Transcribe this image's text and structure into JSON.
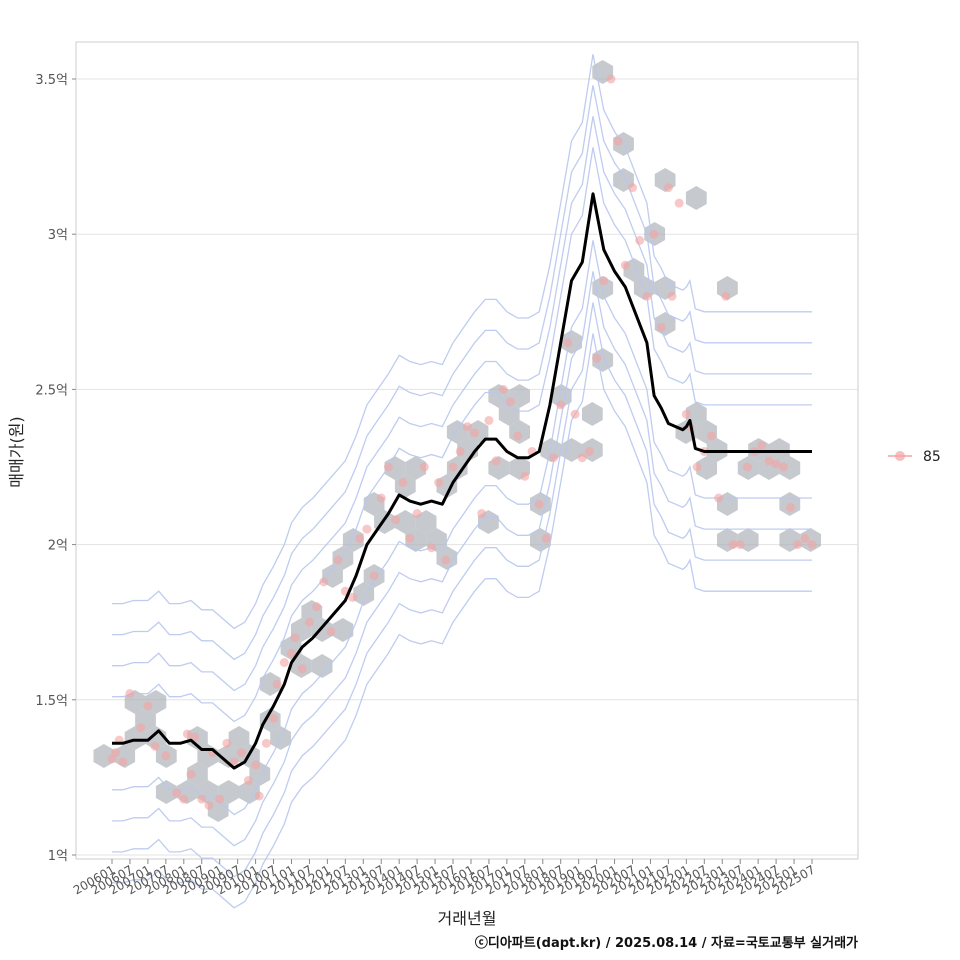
{
  "chart_data": {
    "type": "scatter",
    "xlabel": "거래년월",
    "ylabel": "매매가(원)",
    "caption": "ⓒ디아파트(dapt.kr) / 2025.08.14 / 자료=국토교통부 실거래가",
    "legend": {
      "label": "85",
      "position": "right",
      "color": "#f4a3a3"
    },
    "ylim": [
      1.0,
      3.6
    ],
    "y_ticks": [
      {
        "value": 1.0,
        "label": "1억"
      },
      {
        "value": 1.5,
        "label": "1.5억"
      },
      {
        "value": 2.0,
        "label": "2억"
      },
      {
        "value": 2.5,
        "label": "2.5억"
      },
      {
        "value": 3.0,
        "label": "3억"
      },
      {
        "value": 3.5,
        "label": "3.5억"
      }
    ],
    "x_ticks": [
      "200601",
      "200607",
      "200701",
      "200707",
      "200801",
      "200807",
      "200901",
      "200907",
      "201001",
      "201007",
      "201101",
      "201107",
      "201201",
      "201207",
      "201301",
      "201307",
      "201401",
      "201407",
      "201501",
      "201507",
      "201601",
      "201607",
      "201701",
      "201707",
      "201801",
      "201807",
      "201901",
      "201907",
      "202001",
      "202007",
      "202101",
      "202107",
      "202201",
      "202207",
      "202301",
      "202307",
      "202401",
      "202407",
      "202501",
      "202507"
    ],
    "grid": true,
    "series": [
      {
        "type": "line",
        "color": "#000000",
        "x": [
          2006.0,
          2006.3,
          2006.6,
          2007.0,
          2007.3,
          2007.6,
          2007.9,
          2008.2,
          2008.5,
          2008.8,
          2009.1,
          2009.4,
          2009.7,
          2010.0,
          2010.2,
          2010.5,
          2010.8,
          2011.0,
          2011.3,
          2011.6,
          2011.9,
          2012.2,
          2012.5,
          2012.8,
          2013.1,
          2013.4,
          2013.7,
          2014.0,
          2014.3,
          2014.6,
          2014.9,
          2015.2,
          2015.5,
          2015.8,
          2016.1,
          2016.4,
          2016.7,
          2017.0,
          2017.3,
          2017.6,
          2017.9,
          2018.2,
          2018.5,
          2018.8,
          2019.1,
          2019.4,
          2019.7,
          2020.0,
          2020.3,
          2020.6,
          2020.9,
          2021.1,
          2021.3,
          2021.5,
          2021.7,
          2021.9,
          2022.0,
          2022.1,
          2022.25,
          2022.5,
          2022.8,
          2023.1,
          2023.4,
          2023.7,
          2023.9,
          2024.1,
          2024.4,
          2024.7,
          2025.0,
          2025.2,
          2025.4,
          2025.5
        ],
        "y": [
          1.36,
          1.36,
          1.37,
          1.37,
          1.4,
          1.36,
          1.36,
          1.37,
          1.34,
          1.34,
          1.31,
          1.28,
          1.3,
          1.36,
          1.42,
          1.48,
          1.55,
          1.62,
          1.67,
          1.7,
          1.74,
          1.78,
          1.82,
          1.9,
          2.0,
          2.05,
          2.1,
          2.16,
          2.14,
          2.13,
          2.14,
          2.13,
          2.2,
          2.25,
          2.3,
          2.34,
          2.34,
          2.3,
          2.28,
          2.28,
          2.3,
          2.45,
          2.65,
          2.85,
          2.91,
          3.13,
          2.95,
          2.88,
          2.83,
          2.74,
          2.65,
          2.48,
          2.44,
          2.39,
          2.38,
          2.37,
          2.38,
          2.4,
          2.31,
          2.3,
          2.3,
          2.3,
          2.3,
          2.3,
          2.3,
          2.3,
          2.3,
          2.3,
          2.3,
          2.3,
          2.3,
          2.3
        ]
      },
      {
        "type": "points",
        "name": "85",
        "color": "#f4a3a3",
        "x": [
          2006.0,
          2006.1,
          2006.2,
          2006.3,
          2006.5,
          2006.8,
          2007.0,
          2007.2,
          2007.5,
          2007.8,
          2008.0,
          2008.1,
          2008.2,
          2008.3,
          2008.5,
          2008.7,
          2008.8,
          2009.0,
          2009.2,
          2009.4,
          2009.6,
          2009.8,
          2010.0,
          2010.1,
          2010.3,
          2010.5,
          2010.6,
          2010.8,
          2011.0,
          2011.1,
          2011.3,
          2011.5,
          2011.7,
          2011.9,
          2012.1,
          2012.3,
          2012.5,
          2012.7,
          2012.9,
          2013.1,
          2013.3,
          2013.5,
          2013.7,
          2013.9,
          2014.1,
          2014.3,
          2014.5,
          2014.7,
          2014.9,
          2015.1,
          2015.3,
          2015.5,
          2015.7,
          2015.9,
          2016.1,
          2016.3,
          2016.5,
          2016.7,
          2016.9,
          2017.1,
          2017.3,
          2017.5,
          2017.7,
          2017.9,
          2018.1,
          2018.3,
          2018.5,
          2018.7,
          2018.9,
          2019.1,
          2019.3,
          2019.5,
          2019.7,
          2019.9,
          2020.1,
          2020.3,
          2020.5,
          2020.7,
          2020.9,
          2021.1,
          2021.3,
          2021.5,
          2021.6,
          2021.8,
          2022.0,
          2022.1,
          2022.3,
          2022.5,
          2022.7,
          2022.9,
          2023.1,
          2023.3,
          2023.5,
          2023.7,
          2023.9,
          2024.1,
          2024.3,
          2024.5,
          2024.7,
          2024.9,
          2025.1,
          2025.3,
          2025.5
        ],
        "y": [
          1.31,
          1.33,
          1.37,
          1.3,
          1.52,
          1.41,
          1.48,
          1.35,
          1.32,
          1.2,
          1.18,
          1.39,
          1.26,
          1.38,
          1.18,
          1.16,
          1.33,
          1.18,
          1.36,
          1.3,
          1.33,
          1.24,
          1.29,
          1.19,
          1.36,
          1.44,
          1.55,
          1.62,
          1.65,
          1.7,
          1.6,
          1.75,
          1.8,
          1.88,
          1.72,
          1.95,
          1.85,
          1.83,
          2.02,
          2.05,
          1.9,
          2.15,
          2.25,
          2.08,
          2.2,
          2.02,
          2.1,
          2.25,
          1.99,
          2.2,
          1.95,
          2.25,
          2.3,
          2.38,
          2.36,
          2.1,
          2.4,
          2.27,
          2.5,
          2.46,
          2.35,
          2.22,
          2.3,
          2.13,
          2.02,
          2.28,
          2.45,
          2.65,
          2.42,
          2.28,
          2.3,
          2.6,
          2.85,
          3.5,
          3.3,
          2.9,
          3.15,
          2.98,
          2.8,
          3.0,
          2.7,
          3.15,
          2.8,
          3.1,
          2.42,
          2.38,
          2.25,
          2.3,
          2.35,
          2.15,
          2.8,
          2.0,
          2.0,
          2.25,
          2.3,
          2.32,
          2.27,
          2.26,
          2.25,
          2.12,
          2.0,
          2.02,
          2.0
        ]
      }
    ]
  }
}
